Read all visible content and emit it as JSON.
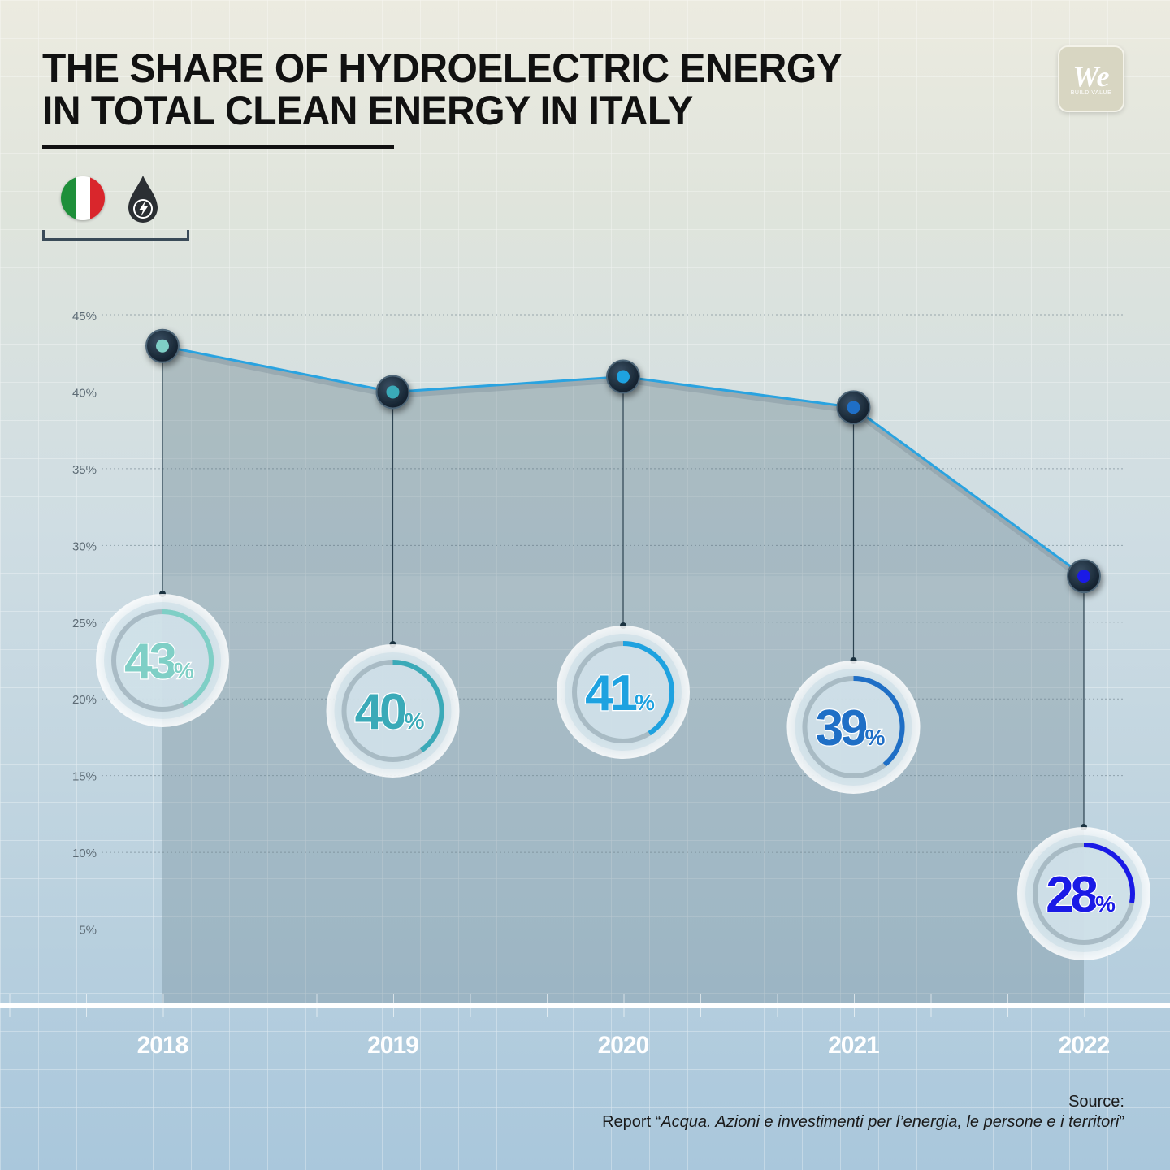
{
  "header": {
    "title_line1": "THE SHARE OF HYDROELECTRIC ENERGY",
    "title_line2": "IN TOTAL CLEAN ENERGY IN ITALY"
  },
  "logo": {
    "text": "We",
    "subtext": "BUILD VALUE"
  },
  "icons": {
    "flag": "italy-flag-icon",
    "hydro": "water-drop-lightning-icon"
  },
  "source": {
    "label": "Source:",
    "prefix": "Report “",
    "title": "Acqua. Azioni e investimenti per l’energia, le persone e i territori",
    "suffix": "”"
  },
  "chart_data": {
    "type": "line",
    "title": "THE SHARE OF HYDROELECTRIC ENERGY IN TOTAL CLEAN ENERGY IN ITALY",
    "xlabel": "",
    "ylabel": "",
    "categories": [
      "2018",
      "2019",
      "2020",
      "2021",
      "2022"
    ],
    "values": [
      43,
      40,
      41,
      39,
      28
    ],
    "value_labels": [
      "43",
      "40",
      "41",
      "39",
      "28"
    ],
    "unit": "%",
    "ylim": [
      0,
      45
    ],
    "yticks": [
      5,
      10,
      15,
      20,
      25,
      30,
      35,
      40,
      45
    ],
    "ytick_labels": [
      "5%",
      "10%",
      "15%",
      "20%",
      "25%",
      "30%",
      "35%",
      "40%",
      "45%"
    ],
    "grid": true,
    "colors": [
      "#7fcfc6",
      "#3aaab8",
      "#1ea2e0",
      "#1f6fc6",
      "#1a1ae6"
    ],
    "line_color": "#2aa3e0"
  }
}
